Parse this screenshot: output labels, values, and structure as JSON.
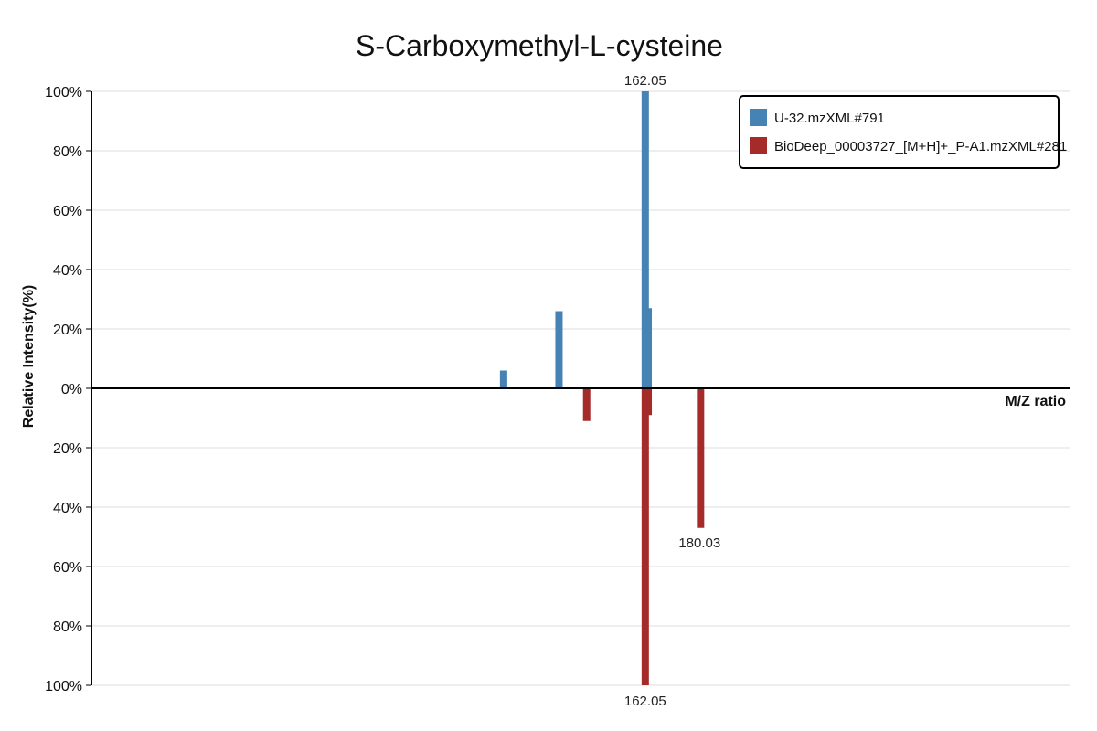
{
  "chart_data": {
    "type": "bar",
    "title": "S-Carboxymethyl-L-cysteine",
    "xlabel": "M/Z ratio",
    "ylabel": "Relative Intensity(%)",
    "ylim": [
      -100,
      100
    ],
    "yticks": [
      100,
      80,
      60,
      40,
      20,
      0,
      -20,
      -40,
      -60,
      -80,
      -100
    ],
    "ytick_labels": [
      "100%",
      "80%",
      "60%",
      "40%",
      "20%",
      "0%",
      "20%",
      "40%",
      "60%",
      "80%",
      "100%"
    ],
    "grid": true,
    "legend_position": "top-right",
    "series": [
      {
        "name": "U-32.mzXML#791",
        "color": "#4682b4",
        "direction": "up",
        "points": [
          {
            "mz": 116.0,
            "intensity": 6
          },
          {
            "mz": 134.0,
            "intensity": 26
          },
          {
            "mz": 162.05,
            "intensity": 100,
            "label": "162.05"
          },
          {
            "mz": 163.0,
            "intensity": 27
          }
        ]
      },
      {
        "name": "BioDeep_00003727_[M+H]+_P-A1.mzXML#281",
        "color": "#a52a2a",
        "direction": "down",
        "points": [
          {
            "mz": 143.0,
            "intensity": 11
          },
          {
            "mz": 162.05,
            "intensity": 100,
            "label": "162.05"
          },
          {
            "mz": 163.0,
            "intensity": 9
          },
          {
            "mz": 180.03,
            "intensity": 47,
            "label": "180.03"
          }
        ]
      }
    ],
    "xlim": [
      -18.0,
      300.0
    ]
  }
}
